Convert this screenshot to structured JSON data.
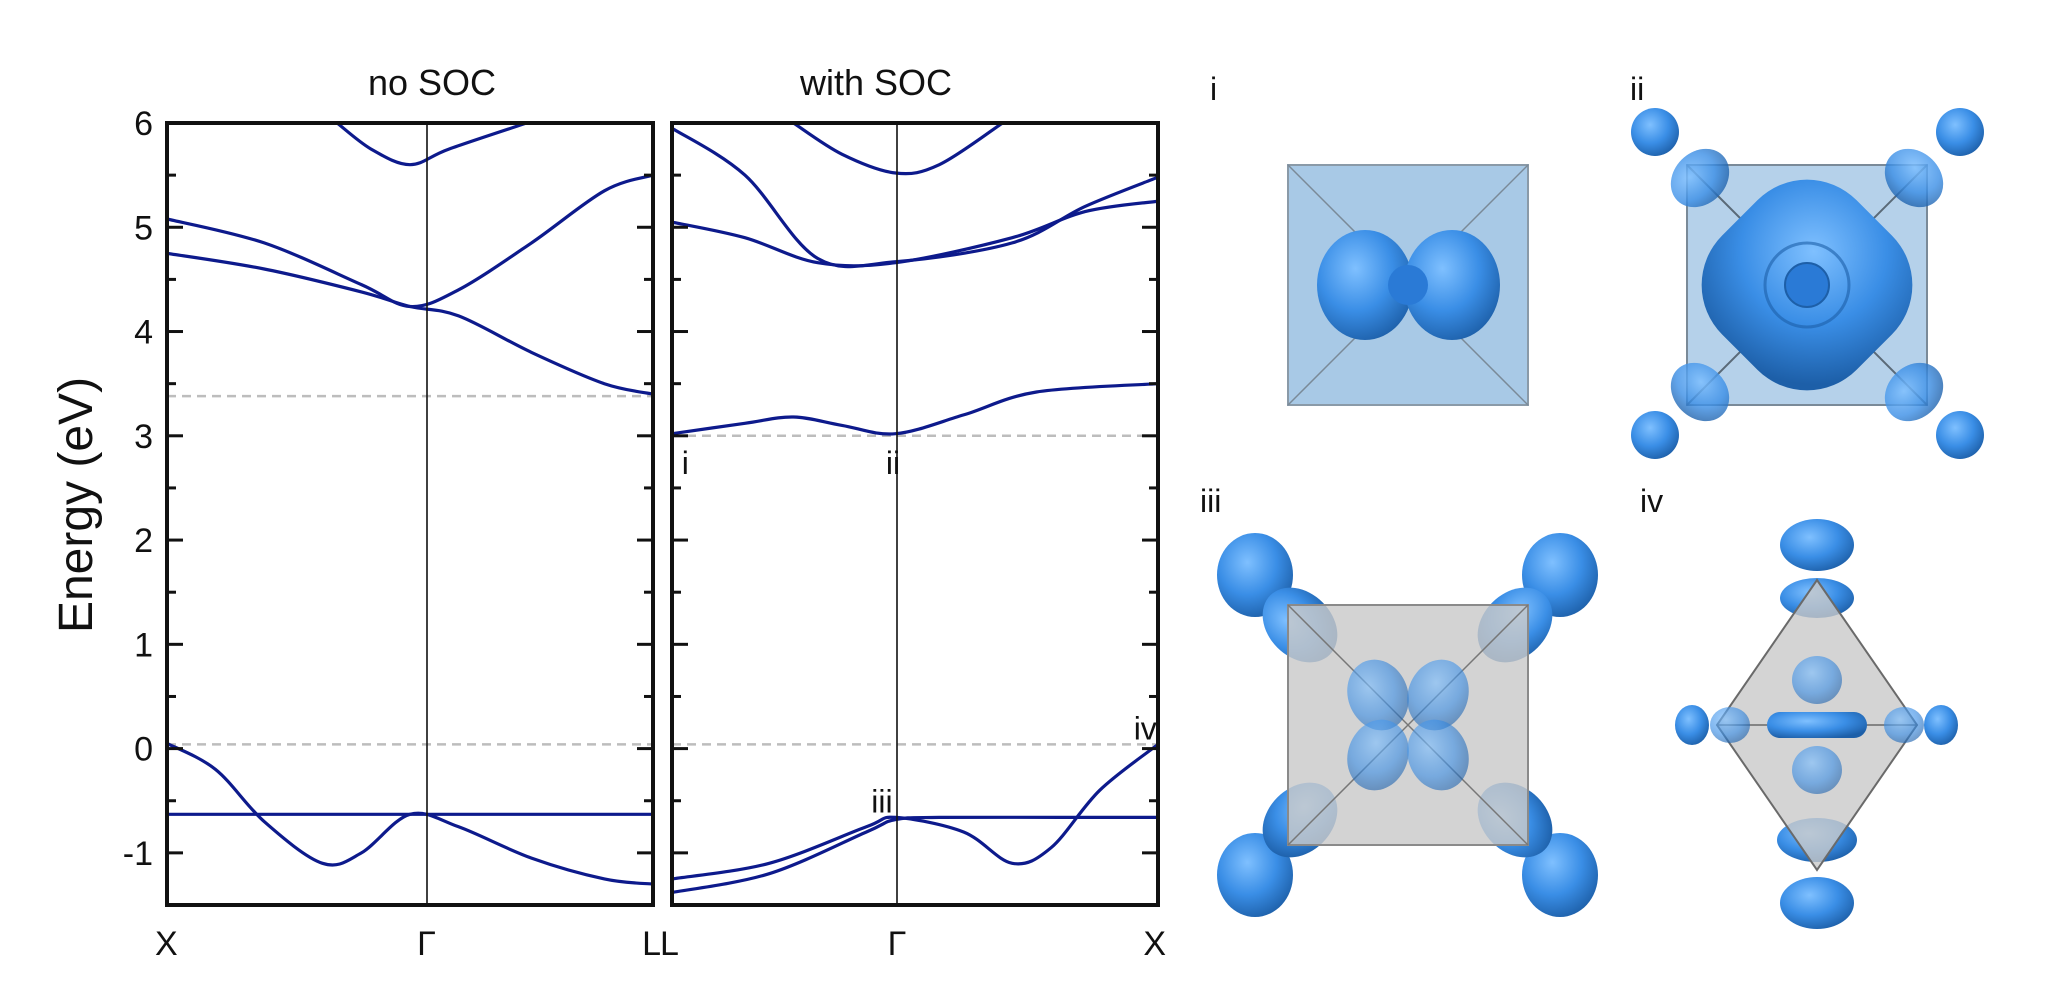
{
  "chart_data": [
    {
      "type": "line",
      "title": "no SOC",
      "ylabel": "Energy (eV)",
      "xlabel": "",
      "x_ticks": [
        "X",
        "Γ",
        "L"
      ],
      "ylim": [
        -1.5,
        6
      ],
      "y_ticks": [
        -1,
        0,
        1,
        2,
        3,
        4,
        5,
        6
      ],
      "reference_lines": [
        0.04,
        3.38
      ],
      "series": [
        {
          "points": [
            [
              0,
              -0.63
            ],
            [
              0.25,
              -0.63
            ],
            [
              0.5,
              -0.63
            ],
            [
              0.75,
              -0.63
            ],
            [
              1,
              -0.63
            ]
          ]
        },
        {
          "points": [
            [
              0,
              0.05
            ],
            [
              0.1,
              -0.2
            ],
            [
              0.2,
              -0.7
            ],
            [
              0.32,
              -1.1
            ],
            [
              0.4,
              -1.0
            ],
            [
              0.5,
              -0.63
            ],
            [
              0.6,
              -0.75
            ],
            [
              0.75,
              -1.05
            ],
            [
              0.9,
              -1.25
            ],
            [
              1,
              -1.3
            ]
          ]
        },
        {
          "points": [
            [
              0,
              4.75
            ],
            [
              0.2,
              4.6
            ],
            [
              0.4,
              4.38
            ],
            [
              0.5,
              4.24
            ],
            [
              0.6,
              4.15
            ],
            [
              0.75,
              3.8
            ],
            [
              0.9,
              3.5
            ],
            [
              1,
              3.4
            ]
          ]
        },
        {
          "points": [
            [
              0,
              5.08
            ],
            [
              0.2,
              4.85
            ],
            [
              0.4,
              4.45
            ],
            [
              0.5,
              4.24
            ],
            [
              0.6,
              4.4
            ],
            [
              0.75,
              4.85
            ],
            [
              0.9,
              5.35
            ],
            [
              1,
              5.5
            ]
          ]
        },
        {
          "points": [
            [
              0.35,
              6.0
            ],
            [
              0.42,
              5.75
            ],
            [
              0.5,
              5.6
            ],
            [
              0.58,
              5.75
            ],
            [
              0.74,
              6.0
            ]
          ]
        }
      ]
    },
    {
      "type": "line",
      "title": "with SOC",
      "xlabel": "",
      "x_ticks": [
        "L",
        "Γ",
        "X"
      ],
      "ylim": [
        -1.5,
        6
      ],
      "reference_lines": [
        0.04,
        3.0
      ],
      "point_labels": [
        {
          "text": "i",
          "x": 0.02,
          "y": 2.75
        },
        {
          "text": "ii",
          "x": 0.44,
          "y": 2.75
        },
        {
          "text": "iii",
          "x": 0.41,
          "y": -0.5
        },
        {
          "text": "iv",
          "x": 0.95,
          "y": 0.2
        }
      ],
      "series": [
        {
          "points": [
            [
              0,
              -1.25
            ],
            [
              0.2,
              -1.1
            ],
            [
              0.4,
              -0.75
            ],
            [
              0.46,
              -0.66
            ],
            [
              0.6,
              -0.8
            ],
            [
              0.7,
              -1.1
            ],
            [
              0.78,
              -0.95
            ],
            [
              0.88,
              -0.4
            ],
            [
              1,
              0.04
            ]
          ]
        },
        {
          "points": [
            [
              0,
              -1.38
            ],
            [
              0.2,
              -1.2
            ],
            [
              0.4,
              -0.8
            ],
            [
              0.46,
              -0.68
            ],
            [
              0.55,
              -0.66
            ],
            [
              0.8,
              -0.66
            ],
            [
              1,
              -0.66
            ]
          ]
        },
        {
          "points": [
            [
              0,
              3.02
            ],
            [
              0.15,
              3.12
            ],
            [
              0.25,
              3.18
            ],
            [
              0.35,
              3.1
            ],
            [
              0.46,
              3.02
            ],
            [
              0.6,
              3.2
            ],
            [
              0.75,
              3.42
            ],
            [
              1,
              3.5
            ]
          ]
        },
        {
          "points": [
            [
              0,
              5.05
            ],
            [
              0.15,
              4.9
            ],
            [
              0.3,
              4.66
            ],
            [
              0.46,
              4.66
            ],
            [
              0.7,
              4.9
            ],
            [
              0.85,
              5.15
            ],
            [
              1,
              5.25
            ]
          ]
        },
        {
          "points": [
            [
              0,
              5.95
            ],
            [
              0.15,
              5.5
            ],
            [
              0.3,
              4.7
            ],
            [
              0.46,
              4.67
            ],
            [
              0.7,
              4.85
            ],
            [
              0.85,
              5.2
            ],
            [
              1,
              5.48
            ]
          ]
        },
        {
          "points": [
            [
              0.25,
              6.0
            ],
            [
              0.35,
              5.7
            ],
            [
              0.46,
              5.52
            ],
            [
              0.55,
              5.6
            ],
            [
              0.68,
              6.0
            ]
          ]
        }
      ]
    }
  ],
  "panels": {
    "i": "i",
    "ii": "ii",
    "iii": "iii",
    "iv": "iv"
  },
  "colors": {
    "band": "#0d1a8c",
    "orbital": "#3a8ee6",
    "octahedron_blue": "#a8c9e6",
    "octahedron_grey": "#c9c9c9"
  }
}
